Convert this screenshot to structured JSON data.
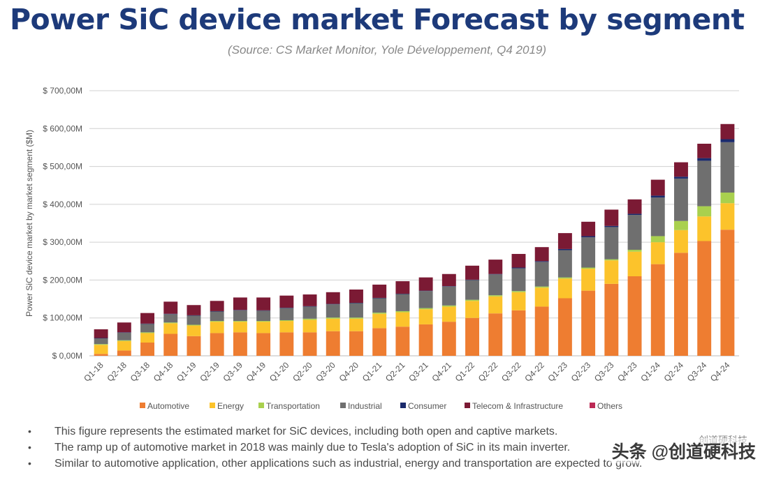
{
  "title": "Power SiC device market Forecast by segment",
  "subtitle": "(Source: CS Market Monitor, Yole Développement, Q4 2019)",
  "chart_data": {
    "type": "bar",
    "stacked": true,
    "ylabel": "Power SiC device market by market segment ($M)",
    "ylim": [
      0,
      700
    ],
    "yticks": [
      0,
      100,
      200,
      300,
      400,
      500,
      600,
      700
    ],
    "ytick_labels": [
      "$ 0,00M",
      "$ 100,00M",
      "$ 200,00M",
      "$ 300,00M",
      "$ 400,00M",
      "$ 500,00M",
      "$ 600,00M",
      "$ 700,00M"
    ],
    "legend_position": "bottom",
    "categories": [
      "Q1-18",
      "Q2-18",
      "Q3-18",
      "Q4-18",
      "Q1-19",
      "Q2-19",
      "Q3-19",
      "Q4-19",
      "Q1-20",
      "Q2-20",
      "Q3-20",
      "Q4-20",
      "Q1-21",
      "Q2-21",
      "Q3-21",
      "Q4-21",
      "Q1-22",
      "Q2-22",
      "Q3-22",
      "Q4-22",
      "Q1-23",
      "Q2-23",
      "Q3-23",
      "Q4-23",
      "Q1-24",
      "Q2-24",
      "Q3-24",
      "Q4-24"
    ],
    "series": [
      {
        "name": "Automotive",
        "color": "#ee7d31",
        "values": [
          5,
          14,
          35,
          58,
          52,
          60,
          62,
          60,
          62,
          62,
          65,
          65,
          73,
          77,
          83,
          90,
          100,
          112,
          120,
          130,
          152,
          172,
          190,
          210,
          242,
          272,
          303,
          333
        ]
      },
      {
        "name": "Energy",
        "color": "#fcc32b",
        "values": [
          24,
          25,
          25,
          28,
          28,
          30,
          28,
          30,
          30,
          33,
          33,
          33,
          38,
          38,
          40,
          40,
          45,
          45,
          48,
          50,
          52,
          58,
          62,
          65,
          58,
          60,
          65,
          70
        ]
      },
      {
        "name": "Transportation",
        "color": "#a9d04e",
        "values": [
          2,
          2,
          2,
          2,
          2,
          2,
          2,
          2,
          2,
          3,
          3,
          3,
          3,
          3,
          3,
          3,
          3,
          3,
          3,
          3,
          3,
          3,
          3,
          5,
          16,
          24,
          27,
          28
        ]
      },
      {
        "name": "Industrial",
        "color": "#6f6f6f",
        "values": [
          15,
          20,
          22,
          22,
          24,
          25,
          28,
          27,
          32,
          32,
          35,
          38,
          38,
          45,
          45,
          50,
          52,
          55,
          60,
          65,
          72,
          80,
          85,
          92,
          102,
          112,
          120,
          133
        ]
      },
      {
        "name": "Consumer",
        "color": "#1a2a6c",
        "values": [
          1,
          1,
          1,
          1,
          1,
          1,
          1,
          1,
          1,
          1,
          1,
          1,
          1,
          1,
          1,
          1,
          1,
          1,
          2,
          2,
          3,
          3,
          3,
          3,
          5,
          5,
          7,
          8
        ]
      },
      {
        "name": "Telecom & Infrastructure",
        "color": "#7b1a34",
        "values": [
          23,
          26,
          28,
          32,
          27,
          27,
          33,
          34,
          32,
          31,
          31,
          35,
          35,
          33,
          35,
          32,
          37,
          38,
          36,
          37,
          42,
          38,
          43,
          38,
          42,
          38,
          38,
          40
        ]
      },
      {
        "name": "Others",
        "color": "#bc2a55",
        "values": [
          0,
          0,
          0,
          0,
          0,
          0,
          0,
          0,
          0,
          0,
          0,
          0,
          0,
          0,
          0,
          0,
          0,
          0,
          0,
          0,
          0,
          0,
          0,
          0,
          0,
          0,
          0,
          0
        ]
      }
    ]
  },
  "bullets": [
    "This figure represents the estimated market for SiC devices, including both open and captive markets.",
    "The ramp up of automotive market in 2018 was mainly due to Tesla's adoption of SiC in its main inverter.",
    "Similar to automotive application, other applications such as industrial, energy and transportation are expected to grow."
  ],
  "watermark": "头条 @创道硬科技",
  "watermark_small": "创道硬科技",
  "bullet_glyph": "•"
}
